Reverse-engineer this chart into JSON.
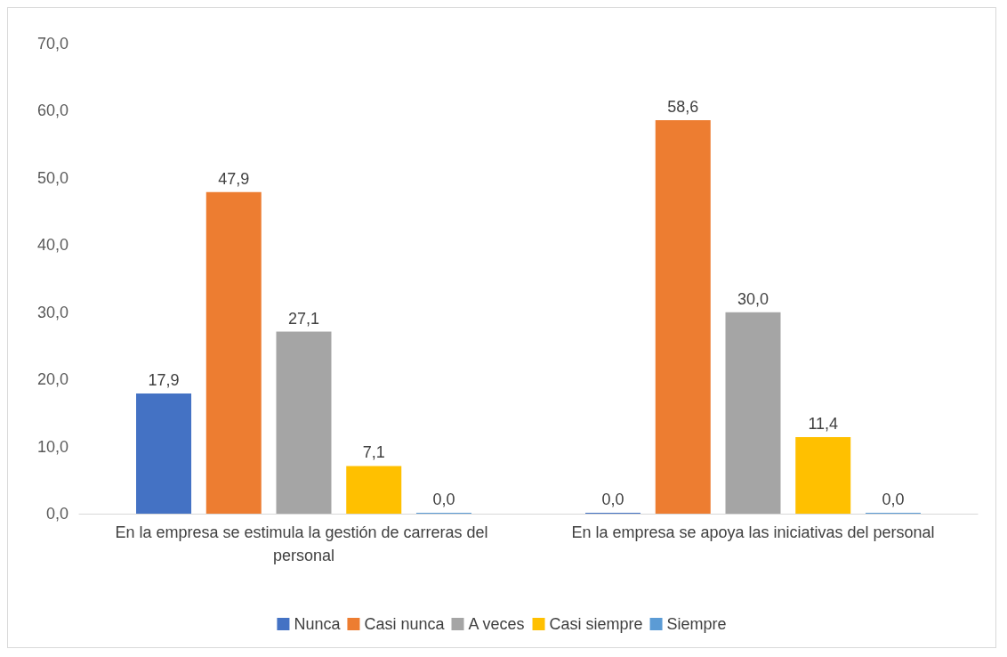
{
  "chart_data": {
    "type": "bar",
    "categories": [
      "En la empresa se estimula la gestión de carreras del personal",
      "En la empresa se apoya las iniciativas del personal"
    ],
    "series": [
      {
        "name": "Nunca",
        "color": "#4472c4",
        "values": [
          17.9,
          0.0
        ],
        "value_labels": [
          "17,9",
          "0,0"
        ]
      },
      {
        "name": "Casi nunca",
        "color": "#ed7d31",
        "values": [
          47.9,
          58.6
        ],
        "value_labels": [
          "47,9",
          "58,6"
        ]
      },
      {
        "name": "A veces",
        "color": "#a5a5a5",
        "values": [
          27.1,
          30.0
        ],
        "value_labels": [
          "27,1",
          "30,0"
        ]
      },
      {
        "name": "Casi siempre",
        "color": "#ffc000",
        "values": [
          7.1,
          11.4
        ],
        "value_labels": [
          "7,1",
          "11,4"
        ]
      },
      {
        "name": "Siempre",
        "color": "#5b9bd5",
        "values": [
          0.0,
          0.0
        ],
        "value_labels": [
          "0,0",
          "0,0"
        ]
      }
    ],
    "ylim": [
      0,
      70
    ],
    "yticks": [
      {
        "value": 0,
        "label": "0,0"
      },
      {
        "value": 10,
        "label": "10,0"
      },
      {
        "value": 20,
        "label": "20,0"
      },
      {
        "value": 30,
        "label": "30,0"
      },
      {
        "value": 40,
        "label": "40,0"
      },
      {
        "value": 50,
        "label": "50,0"
      },
      {
        "value": 60,
        "label": "60,0"
      },
      {
        "value": 70,
        "label": "70,0"
      }
    ],
    "grid": false,
    "legend": "bottom"
  }
}
